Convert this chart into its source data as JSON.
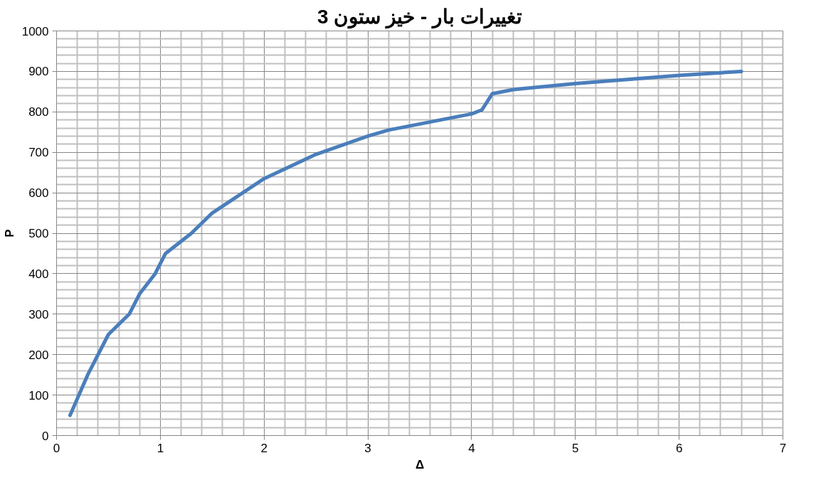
{
  "chart_data": {
    "type": "line",
    "title": "تغییرات بار - خیز ستون 3",
    "xlabel": "Δ",
    "ylabel": "P",
    "x": [
      0.13,
      0.3,
      0.5,
      0.7,
      0.8,
      0.95,
      1.05,
      1.3,
      1.5,
      2,
      2.5,
      3,
      3.2,
      3.5,
      4,
      4.1,
      4.2,
      4.4,
      5,
      6,
      6.6
    ],
    "series": [
      {
        "color": "#4a7ebb",
        "values": [
          50,
          150,
          250,
          300,
          350,
          400,
          450,
          500,
          550,
          635,
          695,
          740,
          755,
          770,
          795,
          805,
          845,
          855,
          870,
          890,
          900
        ]
      }
    ],
    "xlim": [
      0,
      7
    ],
    "xticks": [
      0,
      1,
      2,
      3,
      4,
      5,
      6,
      7
    ],
    "ylim": [
      0,
      1000
    ],
    "yticks": [
      0,
      100,
      200,
      300,
      400,
      500,
      600,
      700,
      800,
      900,
      1000
    ],
    "grid": true,
    "line_style": "solid"
  }
}
